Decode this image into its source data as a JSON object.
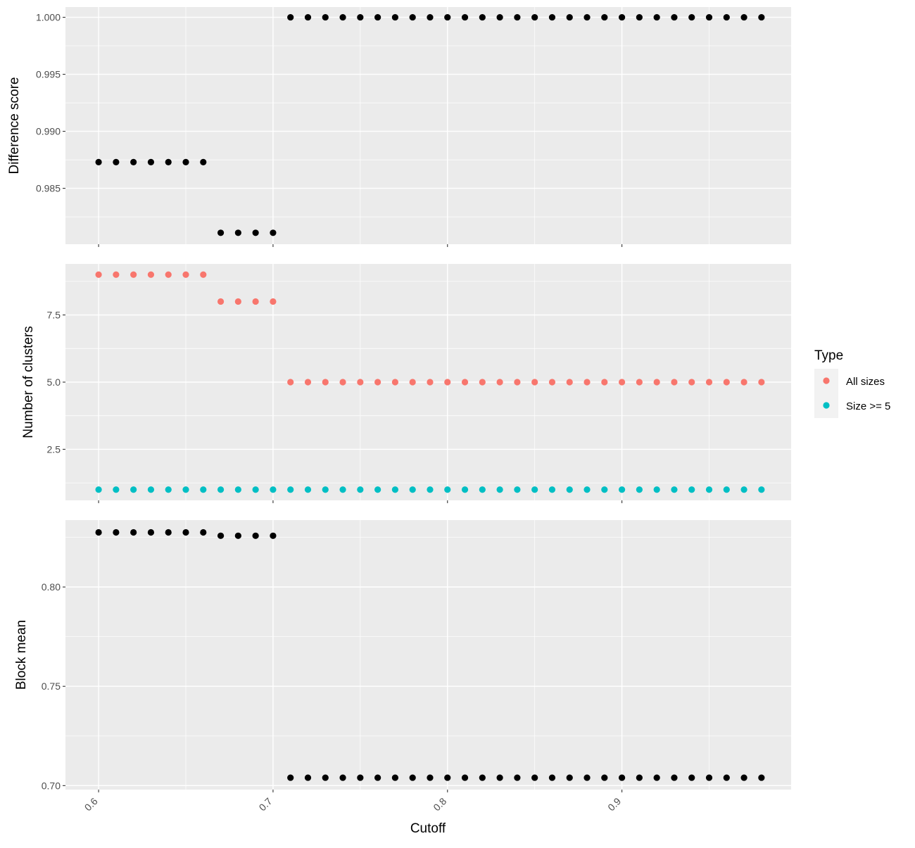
{
  "chart_data": {
    "type": "scatter",
    "x_label": "Cutoff",
    "x_range": [
      0.581,
      0.997
    ],
    "x_ticks": [
      "0.6",
      "0.7",
      "0.8",
      "0.9"
    ],
    "x": [
      0.6,
      0.61,
      0.62,
      0.63,
      0.64,
      0.65,
      0.66,
      0.67,
      0.68,
      0.69,
      0.7,
      0.71,
      0.72,
      0.73,
      0.74,
      0.75,
      0.76,
      0.77,
      0.78,
      0.79,
      0.8,
      0.81,
      0.82,
      0.83,
      0.84,
      0.85,
      0.86,
      0.87,
      0.88,
      0.89,
      0.9,
      0.91,
      0.92,
      0.93,
      0.94,
      0.95,
      0.96,
      0.97,
      0.98
    ],
    "panels": [
      {
        "ylabel": "Difference score",
        "y_range": [
          0.9801,
          1.0009
        ],
        "y_ticks": [
          "0.985",
          "0.990",
          "0.995",
          "1.000"
        ],
        "series": [
          {
            "color": "#000000",
            "values": [
              0.9873,
              0.9873,
              0.9873,
              0.9873,
              0.9873,
              0.9873,
              0.9873,
              0.9811,
              0.9811,
              0.9811,
              0.9811,
              1.0,
              1.0,
              1.0,
              1.0,
              1.0,
              1.0,
              1.0,
              1.0,
              1.0,
              1.0,
              1.0,
              1.0,
              1.0,
              1.0,
              1.0,
              1.0,
              1.0,
              1.0,
              1.0,
              1.0,
              1.0,
              1.0,
              1.0,
              1.0,
              1.0,
              1.0,
              1.0,
              1.0
            ]
          }
        ]
      },
      {
        "ylabel": "Number of clusters",
        "y_range": [
          0.6,
          9.4
        ],
        "y_ticks": [
          "2.5",
          "5.0",
          "7.5"
        ],
        "series": [
          {
            "name": "All sizes",
            "color": "#F8766D",
            "values": [
              9,
              9,
              9,
              9,
              9,
              9,
              9,
              8,
              8,
              8,
              8,
              5,
              5,
              5,
              5,
              5,
              5,
              5,
              5,
              5,
              5,
              5,
              5,
              5,
              5,
              5,
              5,
              5,
              5,
              5,
              5,
              5,
              5,
              5,
              5,
              5,
              5,
              5,
              5
            ]
          },
          {
            "name": "Size >= 5",
            "color": "#00BFC4",
            "values": [
              1,
              1,
              1,
              1,
              1,
              1,
              1,
              1,
              1,
              1,
              1,
              1,
              1,
              1,
              1,
              1,
              1,
              1,
              1,
              1,
              1,
              1,
              1,
              1,
              1,
              1,
              1,
              1,
              1,
              1,
              1,
              1,
              1,
              1,
              1,
              1,
              1,
              1,
              1
            ]
          }
        ]
      },
      {
        "ylabel": "Block mean",
        "y_range": [
          0.698,
          0.8337
        ],
        "y_ticks": [
          "0.70",
          "0.75",
          "0.80"
        ],
        "series": [
          {
            "color": "#000000",
            "values": [
              0.8275,
              0.8275,
              0.8275,
              0.8275,
              0.8275,
              0.8275,
              0.8275,
              0.8258,
              0.8258,
              0.8258,
              0.8258,
              0.704,
              0.704,
              0.704,
              0.704,
              0.704,
              0.704,
              0.704,
              0.704,
              0.704,
              0.704,
              0.704,
              0.704,
              0.704,
              0.704,
              0.704,
              0.704,
              0.704,
              0.704,
              0.704,
              0.704,
              0.704,
              0.704,
              0.704,
              0.704,
              0.704,
              0.704,
              0.704,
              0.704
            ]
          }
        ]
      }
    ],
    "legend": {
      "title": "Type",
      "placement": "right",
      "entries": [
        {
          "label": "All sizes",
          "color": "#F8766D"
        },
        {
          "label": "Size >= 5",
          "color": "#00BFC4"
        }
      ]
    },
    "grid": true,
    "panel_background": "#EBEBEB"
  }
}
